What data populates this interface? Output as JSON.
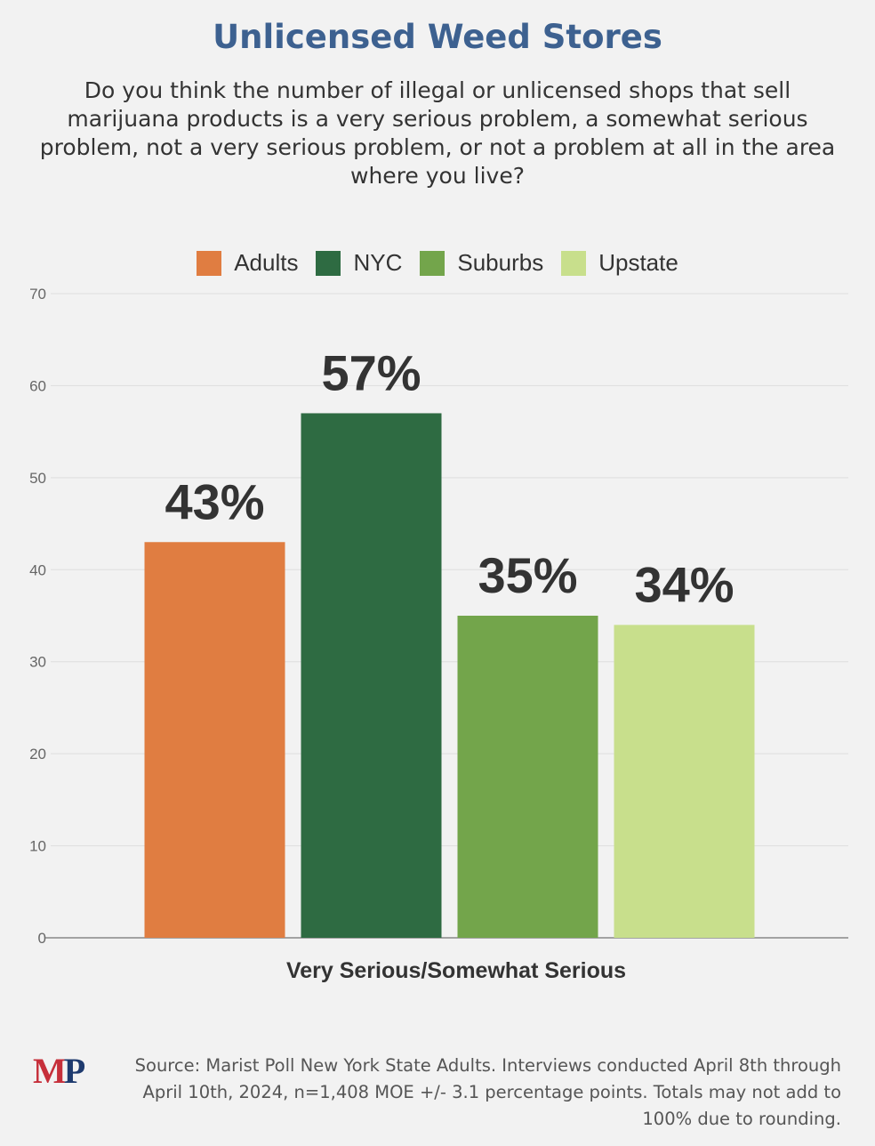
{
  "title": "Unlicensed Weed Stores",
  "subtitle": "Do you think the number of illegal or unlicensed shops that sell marijuana products is a very serious problem, a somewhat serious problem, not a very serious problem, or not a problem at all in the area where you live?",
  "logo": {
    "m": "M",
    "p": "P"
  },
  "source": "Source: Marist Poll New York State Adults. Interviews conducted April 8th through April 10th, 2024, n=1,408 MOE +/- 3.1 percentage points. Totals may not add to 100% due to rounding.",
  "chart_data": {
    "type": "bar",
    "title": "Unlicensed Weed Stores",
    "categories": [
      "Very Serious/Somewhat Serious"
    ],
    "series": [
      {
        "name": "Adults",
        "values": [
          43
        ],
        "color": "#e07d41",
        "label": "43%"
      },
      {
        "name": "NYC",
        "values": [
          57
        ],
        "color": "#2e6b42",
        "label": "57%"
      },
      {
        "name": "Suburbs",
        "values": [
          35
        ],
        "color": "#73a54b",
        "label": "35%"
      },
      {
        "name": "Upstate",
        "values": [
          34
        ],
        "color": "#c8df8c",
        "label": "34%"
      }
    ],
    "ylim": [
      0,
      70
    ],
    "yticks": [
      "0",
      "10",
      "20",
      "30",
      "40",
      "50",
      "60",
      "70"
    ],
    "grid": true,
    "legend": "top"
  }
}
